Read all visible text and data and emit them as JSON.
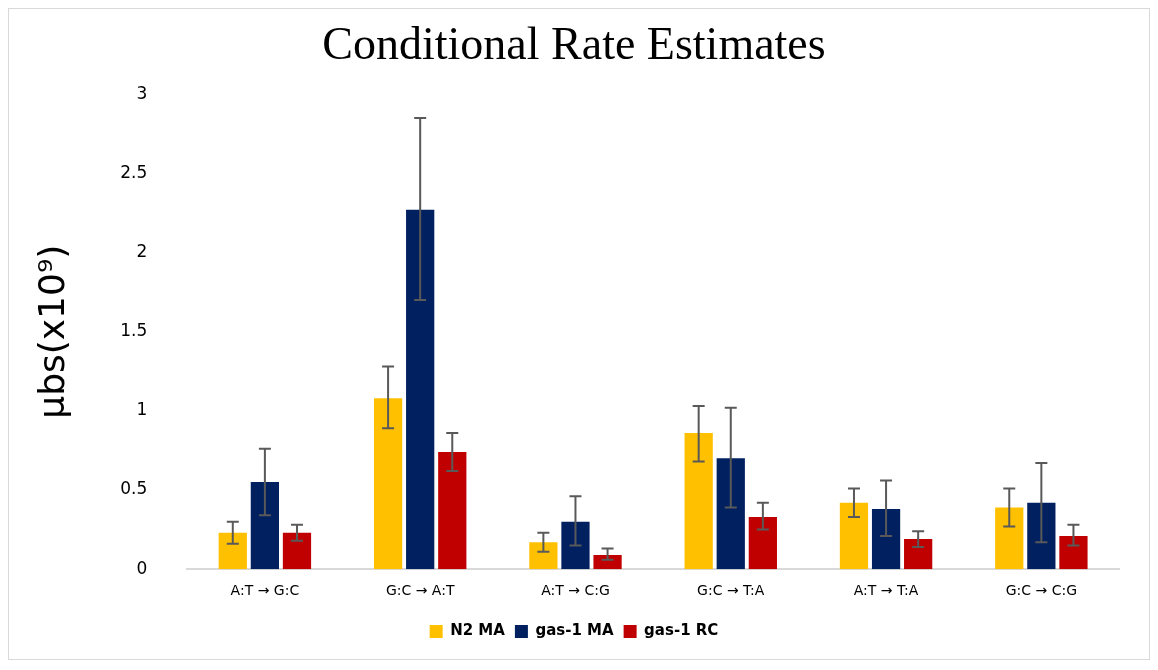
{
  "chart_data": {
    "type": "bar",
    "title": "Conditional Rate Estimates",
    "ylabel": "μbs(x10⁹)",
    "categories": [
      "A:T → G:C",
      "G:C → A:T",
      "A:T → C:G",
      "G:C → T:A",
      "A:T → T:A",
      "G:C → C:G"
    ],
    "series": [
      {
        "name": "N2 MA",
        "color": "#ffc000",
        "values": [
          0.23,
          1.08,
          0.17,
          0.86,
          0.42,
          0.39
        ],
        "errors": [
          [
            0.16,
            0.3
          ],
          [
            0.89,
            1.28
          ],
          [
            0.11,
            0.23
          ],
          [
            0.68,
            1.03
          ],
          [
            0.33,
            0.51
          ],
          [
            0.27,
            0.51
          ]
        ]
      },
      {
        "name": "gas-1 MA",
        "color": "#002060",
        "values": [
          0.55,
          2.27,
          0.3,
          0.7,
          0.38,
          0.42
        ],
        "errors": [
          [
            0.34,
            0.76
          ],
          [
            1.7,
            2.85
          ],
          [
            0.15,
            0.46
          ],
          [
            0.39,
            1.02
          ],
          [
            0.21,
            0.56
          ],
          [
            0.17,
            0.67
          ]
        ]
      },
      {
        "name": "gas-1 RC",
        "color": "#c00000",
        "values": [
          0.23,
          0.74,
          0.09,
          0.33,
          0.19,
          0.21
        ],
        "errors": [
          [
            0.18,
            0.28
          ],
          [
            0.62,
            0.86
          ],
          [
            0.06,
            0.13
          ],
          [
            0.25,
            0.42
          ],
          [
            0.14,
            0.24
          ],
          [
            0.15,
            0.28
          ]
        ]
      }
    ],
    "ylim": [
      0,
      3
    ],
    "yticks": [
      0,
      0.5,
      1,
      1.5,
      2,
      2.5,
      3
    ],
    "grid": false,
    "legend": "bottom"
  }
}
